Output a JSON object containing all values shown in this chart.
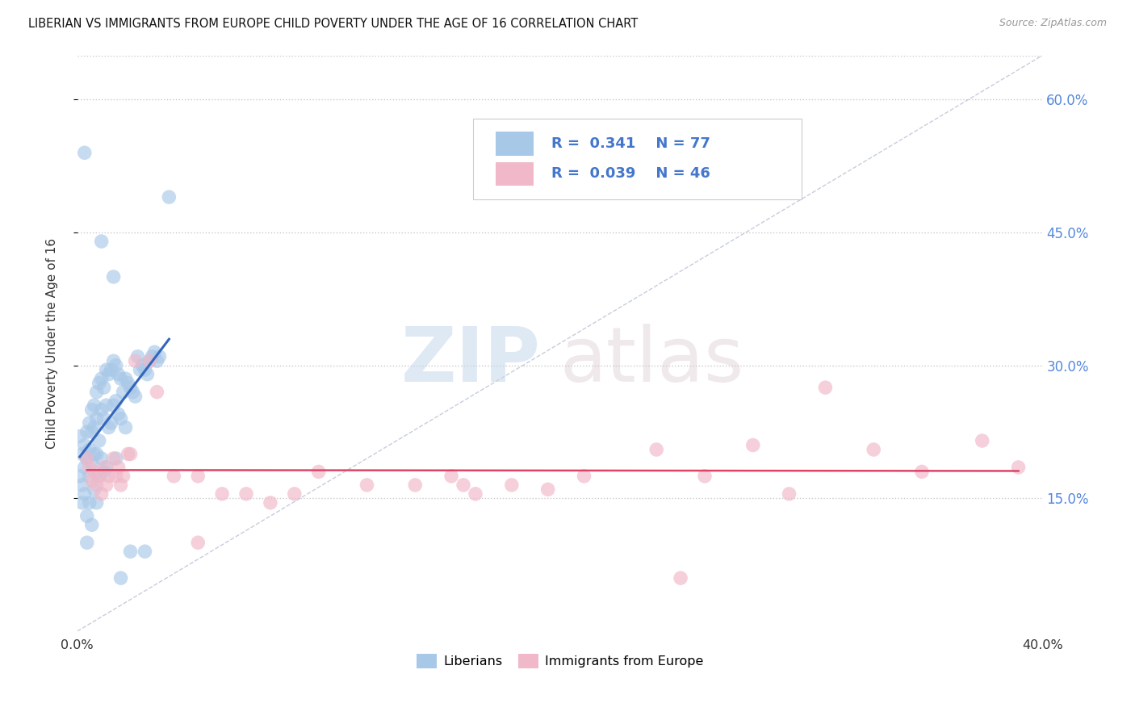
{
  "title": "LIBERIAN VS IMMIGRANTS FROM EUROPE CHILD POVERTY UNDER THE AGE OF 16 CORRELATION CHART",
  "source": "Source: ZipAtlas.com",
  "ylabel": "Child Poverty Under the Age of 16",
  "xlim": [
    0.0,
    0.4
  ],
  "ylim": [
    0.0,
    0.65
  ],
  "yticks": [
    0.15,
    0.3,
    0.45,
    0.6
  ],
  "ytick_labels": [
    "15.0%",
    "30.0%",
    "45.0%",
    "60.0%"
  ],
  "liberian_R": "0.341",
  "liberian_N": "77",
  "europe_R": "0.039",
  "europe_N": "46",
  "liberian_color": "#a8c8e8",
  "liberian_line_color": "#3366bb",
  "europe_color": "#f0b8c8",
  "europe_line_color": "#dd4466",
  "diagonal_color": "#c0c8d8",
  "lib_x": [
    0.001,
    0.001,
    0.002,
    0.002,
    0.002,
    0.003,
    0.003,
    0.003,
    0.004,
    0.004,
    0.004,
    0.005,
    0.005,
    0.005,
    0.005,
    0.006,
    0.006,
    0.006,
    0.006,
    0.007,
    0.007,
    0.007,
    0.007,
    0.008,
    0.008,
    0.008,
    0.008,
    0.009,
    0.009,
    0.009,
    0.01,
    0.01,
    0.01,
    0.011,
    0.011,
    0.011,
    0.012,
    0.012,
    0.012,
    0.013,
    0.013,
    0.014,
    0.014,
    0.015,
    0.015,
    0.016,
    0.016,
    0.016,
    0.017,
    0.017,
    0.018,
    0.018,
    0.019,
    0.02,
    0.02,
    0.021,
    0.022,
    0.023,
    0.024,
    0.025,
    0.026,
    0.027,
    0.028,
    0.029,
    0.03,
    0.031,
    0.032,
    0.033,
    0.034,
    0.003,
    0.004,
    0.01,
    0.015,
    0.022,
    0.028,
    0.018,
    0.038
  ],
  "lib_y": [
    0.22,
    0.175,
    0.2,
    0.165,
    0.145,
    0.21,
    0.185,
    0.155,
    0.225,
    0.195,
    0.13,
    0.235,
    0.205,
    0.175,
    0.145,
    0.25,
    0.225,
    0.19,
    0.12,
    0.255,
    0.23,
    0.2,
    0.16,
    0.27,
    0.24,
    0.2,
    0.145,
    0.28,
    0.215,
    0.175,
    0.285,
    0.25,
    0.195,
    0.275,
    0.24,
    0.18,
    0.295,
    0.255,
    0.185,
    0.29,
    0.23,
    0.295,
    0.235,
    0.305,
    0.255,
    0.3,
    0.26,
    0.195,
    0.29,
    0.245,
    0.285,
    0.24,
    0.27,
    0.285,
    0.23,
    0.28,
    0.275,
    0.27,
    0.265,
    0.31,
    0.295,
    0.3,
    0.295,
    0.29,
    0.305,
    0.31,
    0.315,
    0.305,
    0.31,
    0.54,
    0.1,
    0.44,
    0.4,
    0.09,
    0.09,
    0.06,
    0.49
  ],
  "eur_x": [
    0.004,
    0.005,
    0.006,
    0.007,
    0.008,
    0.009,
    0.01,
    0.011,
    0.012,
    0.013,
    0.015,
    0.016,
    0.017,
    0.018,
    0.019,
    0.021,
    0.022,
    0.024,
    0.03,
    0.033,
    0.04,
    0.05,
    0.06,
    0.07,
    0.08,
    0.09,
    0.1,
    0.12,
    0.14,
    0.155,
    0.165,
    0.18,
    0.195,
    0.21,
    0.24,
    0.26,
    0.28,
    0.295,
    0.31,
    0.33,
    0.35,
    0.375,
    0.39,
    0.05,
    0.16,
    0.25
  ],
  "eur_y": [
    0.195,
    0.185,
    0.17,
    0.18,
    0.165,
    0.175,
    0.155,
    0.185,
    0.165,
    0.175,
    0.195,
    0.175,
    0.185,
    0.165,
    0.175,
    0.2,
    0.2,
    0.305,
    0.305,
    0.27,
    0.175,
    0.175,
    0.155,
    0.155,
    0.145,
    0.155,
    0.18,
    0.165,
    0.165,
    0.175,
    0.155,
    0.165,
    0.16,
    0.175,
    0.205,
    0.175,
    0.21,
    0.155,
    0.275,
    0.205,
    0.18,
    0.215,
    0.185,
    0.1,
    0.165,
    0.06
  ]
}
